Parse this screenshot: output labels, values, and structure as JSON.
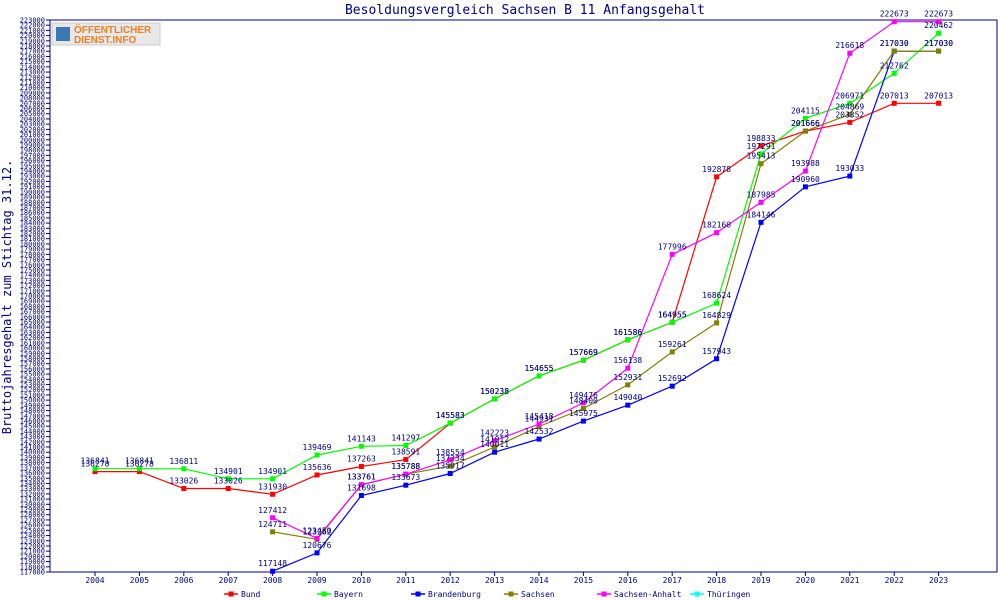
{
  "chart_data": {
    "type": "line",
    "title": "Besoldungsvergleich Sachsen B 11 Anfangsgehalt",
    "xlabel": "",
    "ylabel": "Bruttojahresgehalt zum Stichtag 31.12.",
    "x": [
      2004,
      2005,
      2006,
      2007,
      2008,
      2009,
      2010,
      2011,
      2012,
      2013,
      2014,
      2015,
      2016,
      2017,
      2018,
      2019,
      2020,
      2021,
      2022,
      2023
    ],
    "ylim": [
      117000,
      223000
    ],
    "ytick_step": 1000,
    "grid": false,
    "legend_position": "bottom",
    "series": [
      {
        "name": "Bund",
        "color": "#ff0000",
        "values": [
          136278,
          136278,
          133026,
          133026,
          131930,
          135636,
          137263,
          138591,
          145583,
          150238,
          154655,
          157669,
          161586,
          164955,
          192878,
          198833,
          201666,
          203352,
          207013,
          207013
        ]
      },
      {
        "name": "Bayern",
        "color": "#00ff00",
        "values": [
          136841,
          136841,
          136811,
          134901,
          134901,
          139469,
          141143,
          141297,
          145583,
          150238,
          154655,
          157669,
          161586,
          164955,
          168624,
          197291,
          204115,
          206971,
          212762,
          220462
        ]
      },
      {
        "name": "Brandenburg",
        "color": "#0000ff",
        "values": [
          null,
          null,
          null,
          null,
          117148,
          120676,
          131698,
          133673,
          135917,
          140011,
          142532,
          145975,
          149040,
          152692,
          157943,
          184146,
          190960,
          193033,
          217030,
          217030
        ]
      },
      {
        "name": "Sachsen",
        "color": "#808000",
        "values": [
          null,
          null,
          null,
          null,
          124711,
          123262,
          133761,
          135788,
          137334,
          141012,
          144931,
          148400,
          152931,
          159261,
          164829,
          195413,
          201666,
          204869,
          217030,
          217030
        ]
      },
      {
        "name": "Sachsen-Anhalt",
        "color": "#ff00ff",
        "values": [
          null,
          null,
          null,
          null,
          127412,
          123450,
          133761,
          135788,
          138554,
          142223,
          145418,
          149476,
          156138,
          177996,
          182160,
          187985,
          193988,
          216618,
          222673,
          222673
        ]
      },
      {
        "name": "Thüringen",
        "color": "#00ffff",
        "values": [
          null,
          null,
          null,
          null,
          null,
          null,
          null,
          null,
          null,
          null,
          null,
          null,
          null,
          null,
          null,
          null,
          null,
          null,
          null,
          null
        ]
      }
    ]
  },
  "logo": {
    "line1": "ÖFFENTLICHER",
    "line2": "DIENST.INFO"
  }
}
